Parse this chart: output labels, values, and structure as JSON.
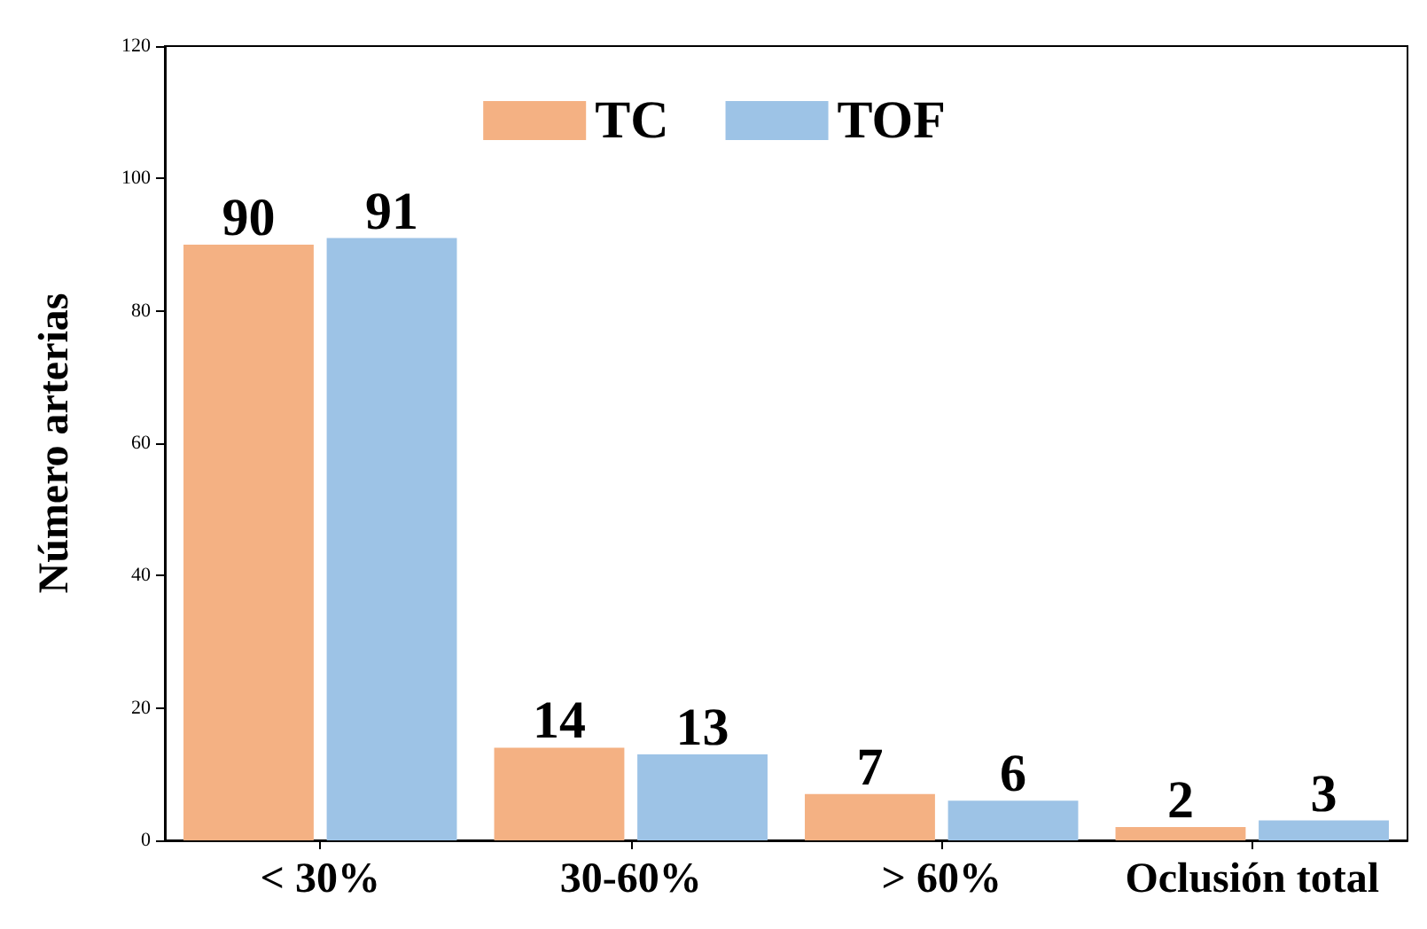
{
  "chart_data": {
    "type": "bar",
    "ylabel": "Número arterias",
    "categories": [
      "< 30%",
      "30-60%",
      "> 60%",
      "Oclusión total"
    ],
    "series": [
      {
        "name": "TC",
        "color": "#f4b183",
        "values": [
          90,
          14,
          7,
          2
        ]
      },
      {
        "name": "TOF",
        "color": "#9dc3e6",
        "values": [
          91,
          13,
          6,
          3
        ]
      }
    ],
    "ylim": [
      0,
      120
    ],
    "yticks": [
      0,
      20,
      40,
      60,
      80,
      100,
      120
    ],
    "data_labels": true,
    "legend": "top",
    "grid": false
  }
}
